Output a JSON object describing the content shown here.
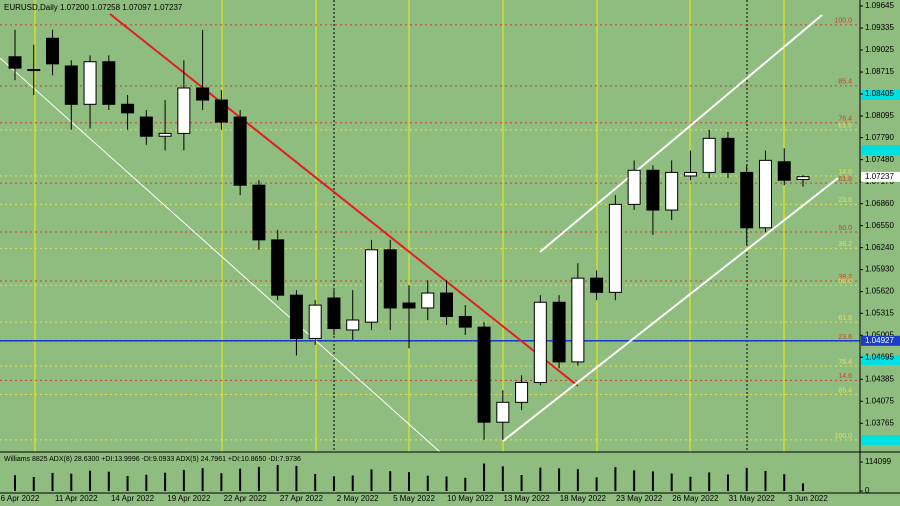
{
  "chart_data": {
    "type": "candlestick",
    "title": "EURUSD,Daily  1.07200 1.07258 1.07097 1.07237",
    "categories": [
      "6 Apr 2022",
      null,
      null,
      "11 Apr 2022",
      null,
      null,
      "14 Apr 2022",
      null,
      null,
      "19 Apr 2022",
      null,
      null,
      "22 Apr 2022",
      null,
      null,
      "27 Apr 2022",
      null,
      null,
      "2 May 2022",
      null,
      null,
      "5 May 2022",
      null,
      null,
      "10 May 2022",
      null,
      null,
      "13 May 2022",
      null,
      null,
      "18 May 2022",
      null,
      null,
      "23 May 2022",
      null,
      null,
      "26 May 2022",
      null,
      null,
      "31 May 2022",
      null,
      null,
      "3 Jun 2022"
    ],
    "open": [
      1.0893,
      1.0875,
      1.0919,
      1.088,
      1.0826,
      1.0886,
      1.0826,
      1.0808,
      1.0781,
      1.0785,
      1.0849,
      1.0832,
      1.0808,
      1.0712,
      1.0635,
      1.0557,
      1.0496,
      1.0553,
      1.0508,
      1.0519,
      1.0621,
      1.0546,
      1.0539,
      1.056,
      1.0527,
      1.0512,
      1.0378,
      1.0406,
      1.0434,
      1.0547,
      1.0463,
      1.0581,
      1.0561,
      1.0685,
      1.0733,
      1.0677,
      1.0725,
      1.073,
      1.0778,
      1.073,
      1.0652,
      1.0745,
      1.072
    ],
    "high": [
      1.0931,
      1.091,
      1.0931,
      1.0888,
      1.0895,
      1.0895,
      1.0839,
      1.0818,
      1.0832,
      1.0888,
      1.0931,
      1.0846,
      1.0818,
      1.0719,
      1.0649,
      1.0564,
      1.055,
      1.0564,
      1.0564,
      1.0635,
      1.0635,
      1.0571,
      1.0578,
      1.0578,
      1.0543,
      1.0519,
      1.0423,
      1.0444,
      1.0557,
      1.0557,
      1.0602,
      1.0592,
      1.0698,
      1.0747,
      1.074,
      1.0747,
      1.0761,
      1.079,
      1.0787,
      1.074,
      1.0761,
      1.0764,
      1.0726
    ],
    "low": [
      1.086,
      1.0839,
      1.0867,
      1.079,
      1.0792,
      1.0818,
      1.079,
      1.0769,
      1.0761,
      1.0761,
      1.0818,
      1.079,
      1.0698,
      1.0621,
      1.055,
      1.0472,
      1.0487,
      1.0501,
      1.0494,
      1.0508,
      1.0508,
      1.0482,
      1.0522,
      1.0515,
      1.0501,
      1.0353,
      1.0353,
      1.0395,
      1.043,
      1.0454,
      1.0458,
      1.055,
      1.055,
      1.0677,
      1.0642,
      1.0663,
      1.0719,
      1.0722,
      1.0722,
      1.0628,
      1.0646,
      1.0712,
      1.071
    ],
    "close": [
      1.0877,
      1.0874,
      1.0883,
      1.0826,
      1.0886,
      1.0826,
      1.0814,
      1.0781,
      1.0785,
      1.0849,
      1.0832,
      1.0801,
      1.0712,
      1.0635,
      1.0557,
      1.0496,
      1.0543,
      1.051,
      1.0522,
      1.0621,
      1.0539,
      1.0539,
      1.056,
      1.0527,
      1.0512,
      1.0378,
      1.0406,
      1.0434,
      1.0547,
      1.0463,
      1.0581,
      1.0561,
      1.0685,
      1.0733,
      1.0677,
      1.073,
      1.073,
      1.0778,
      1.073,
      1.0652,
      1.0747,
      1.0719,
      1.0724
    ],
    "up_color": "#ffffff",
    "down_color": "#000000",
    "ylim": [
      1.0336,
      1.0973
    ],
    "yticks": [
      1.09645,
      1.09335,
      1.09025,
      1.08715,
      1.08405,
      1.08095,
      {
        "value": 1.0779,
        "label": "1.07790"
      },
      {
        "value": 1.0748,
        "label": "1.07480"
      },
      {
        "value": 1.0717,
        "label": "1.07170"
      },
      {
        "value": 1.0686,
        "label": "1.06860"
      },
      {
        "value": 1.0655,
        "label": "1.06550"
      },
      {
        "value": 1.0624,
        "label": "1.06240"
      },
      {
        "value": 1.0593,
        "label": "1.05930"
      },
      {
        "value": 1.0562,
        "label": "1.05620"
      },
      1.05315,
      1.05005,
      1.04695,
      1.04385,
      1.04075,
      1.03765
    ],
    "levels": [
      {
        "value": 1.0938,
        "label": "100.0",
        "color": "#d0402c"
      },
      {
        "value": 1.0852,
        "label": "85.4",
        "color": "#d0402c"
      },
      {
        "value": 1.08,
        "label": "76.4",
        "color": "#d0402c"
      },
      {
        "value": 1.079,
        "label": "61.8",
        "color": "#e8e050"
      },
      {
        "value": 1.0725,
        "label": "14.6",
        "color": "#e8e050"
      },
      {
        "value": 1.0715,
        "label": "61.8",
        "color": "#d0402c"
      },
      {
        "value": 1.0685,
        "label": "23.6",
        "color": "#e8e050"
      },
      {
        "value": 1.0646,
        "label": "50.0",
        "color": "#d0402c"
      },
      {
        "value": 1.0623,
        "label": "38.2",
        "color": "#e8e050"
      },
      {
        "value": 1.0577,
        "label": "38.2",
        "color": "#d0402c"
      },
      {
        "value": 1.0571,
        "label": "50.0",
        "color": "#e8e050"
      },
      {
        "value": 1.0519,
        "label": "61.8",
        "color": "#e8e050"
      },
      {
        "value": 1.0492,
        "label": "23.6",
        "color": "#d0402c"
      },
      {
        "value": 1.0457,
        "label": "76.4",
        "color": "#e8e050"
      },
      {
        "value": 1.0437,
        "label": "14.6",
        "color": "#d0402c"
      },
      {
        "value": 1.0417,
        "label": "85.4",
        "color": "#e8e050"
      },
      {
        "value": 1.0353,
        "label": "100.0",
        "color": "#e8e050"
      }
    ],
    "price_markers": [
      {
        "value": 1.07237,
        "color": "#ffffff",
        "text_color": "#000000"
      },
      {
        "value": 1.04927,
        "color": "#1a3cc8",
        "text_color": "#ffffff"
      }
    ],
    "indicator": {
      "type": "bar",
      "title": "Williams 8825 ADX(8) 28.6300 +DI:13.9996 -DI:9.0933 ADX(5) 24.7961 +DI:10.8650 -DI:7.9736",
      "values": [
        62000,
        55000,
        71000,
        68000,
        80000,
        76000,
        59000,
        64000,
        72000,
        83000,
        90000,
        70000,
        88000,
        95000,
        102000,
        99000,
        67000,
        58000,
        61000,
        85000,
        78000,
        74000,
        60000,
        57000,
        52000,
        108000,
        97000,
        63000,
        92000,
        89000,
        86000,
        54000,
        94000,
        81000,
        77000,
        69000,
        56000,
        73000,
        65000,
        91000,
        79000,
        66000,
        30000
      ],
      "color": "#000000",
      "ylim": [
        0,
        114099
      ],
      "yticks": [
        114099,
        0
      ]
    }
  }
}
